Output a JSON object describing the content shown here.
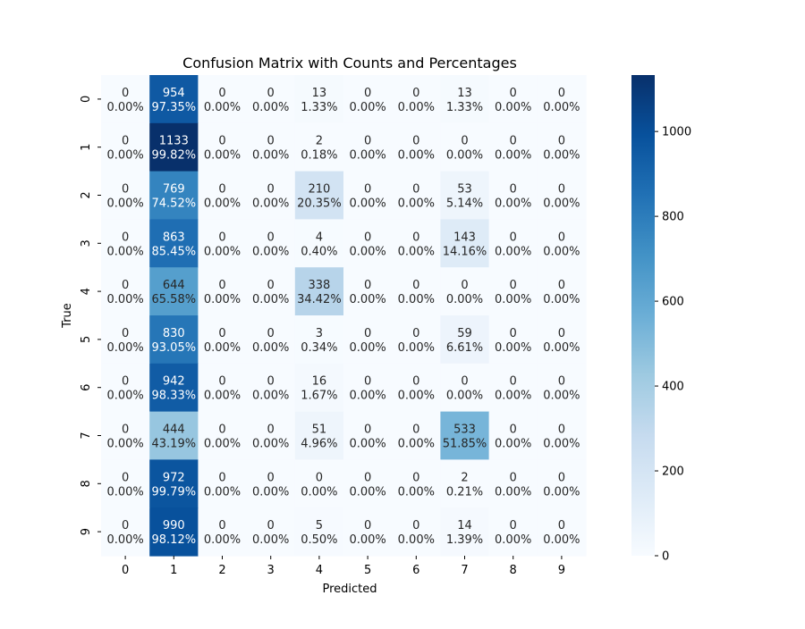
{
  "chart_data": {
    "type": "heatmap",
    "title": "Confusion Matrix with Counts and Percentages",
    "xlabel": "Predicted",
    "ylabel": "True",
    "x_categories": [
      "0",
      "1",
      "2",
      "3",
      "4",
      "5",
      "6",
      "7",
      "8",
      "9"
    ],
    "y_categories": [
      "0",
      "1",
      "2",
      "3",
      "4",
      "5",
      "6",
      "7",
      "8",
      "9"
    ],
    "counts": [
      [
        0,
        954,
        0,
        0,
        13,
        0,
        0,
        13,
        0,
        0
      ],
      [
        0,
        1133,
        0,
        0,
        2,
        0,
        0,
        0,
        0,
        0
      ],
      [
        0,
        769,
        0,
        0,
        210,
        0,
        0,
        53,
        0,
        0
      ],
      [
        0,
        863,
        0,
        0,
        4,
        0,
        0,
        143,
        0,
        0
      ],
      [
        0,
        644,
        0,
        0,
        338,
        0,
        0,
        0,
        0,
        0
      ],
      [
        0,
        830,
        0,
        0,
        3,
        0,
        0,
        59,
        0,
        0
      ],
      [
        0,
        942,
        0,
        0,
        16,
        0,
        0,
        0,
        0,
        0
      ],
      [
        0,
        444,
        0,
        0,
        51,
        0,
        0,
        533,
        0,
        0
      ],
      [
        0,
        972,
        0,
        0,
        0,
        0,
        0,
        2,
        0,
        0
      ],
      [
        0,
        990,
        0,
        0,
        5,
        0,
        0,
        14,
        0,
        0
      ]
    ],
    "percentages": [
      [
        "0.00%",
        "97.35%",
        "0.00%",
        "0.00%",
        "1.33%",
        "0.00%",
        "0.00%",
        "1.33%",
        "0.00%",
        "0.00%"
      ],
      [
        "0.00%",
        "99.82%",
        "0.00%",
        "0.00%",
        "0.18%",
        "0.00%",
        "0.00%",
        "0.00%",
        "0.00%",
        "0.00%"
      ],
      [
        "0.00%",
        "74.52%",
        "0.00%",
        "0.00%",
        "20.35%",
        "0.00%",
        "0.00%",
        "5.14%",
        "0.00%",
        "0.00%"
      ],
      [
        "0.00%",
        "85.45%",
        "0.00%",
        "0.00%",
        "0.40%",
        "0.00%",
        "0.00%",
        "14.16%",
        "0.00%",
        "0.00%"
      ],
      [
        "0.00%",
        "65.58%",
        "0.00%",
        "0.00%",
        "34.42%",
        "0.00%",
        "0.00%",
        "0.00%",
        "0.00%",
        "0.00%"
      ],
      [
        "0.00%",
        "93.05%",
        "0.00%",
        "0.00%",
        "0.34%",
        "0.00%",
        "0.00%",
        "6.61%",
        "0.00%",
        "0.00%"
      ],
      [
        "0.00%",
        "98.33%",
        "0.00%",
        "0.00%",
        "1.67%",
        "0.00%",
        "0.00%",
        "0.00%",
        "0.00%",
        "0.00%"
      ],
      [
        "0.00%",
        "43.19%",
        "0.00%",
        "0.00%",
        "4.96%",
        "0.00%",
        "0.00%",
        "51.85%",
        "0.00%",
        "0.00%"
      ],
      [
        "0.00%",
        "99.79%",
        "0.00%",
        "0.00%",
        "0.00%",
        "0.00%",
        "0.00%",
        "0.21%",
        "0.00%",
        "0.00%"
      ],
      [
        "0.00%",
        "98.12%",
        "0.00%",
        "0.00%",
        "0.50%",
        "0.00%",
        "0.00%",
        "1.39%",
        "0.00%",
        "0.00%"
      ]
    ],
    "colorbar": {
      "colormap": "Blues",
      "range": [
        0,
        1133
      ],
      "ticks": [
        0,
        200,
        400,
        600,
        800,
        1000
      ]
    }
  }
}
